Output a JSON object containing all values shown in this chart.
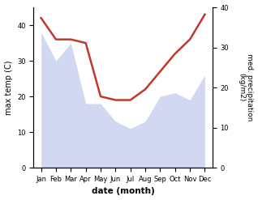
{
  "months": [
    "Jan",
    "Feb",
    "Mar",
    "Apr",
    "May",
    "Jun",
    "Jul",
    "Aug",
    "Sep",
    "Oct",
    "Nov",
    "Dec"
  ],
  "temperature": [
    42,
    36,
    36,
    35,
    20,
    19,
    19,
    22,
    27,
    32,
    36,
    43
  ],
  "precipitation": [
    38,
    30,
    35,
    18,
    18,
    13,
    11,
    13,
    20,
    21,
    19,
    26
  ],
  "temp_color": "#c0392b",
  "precip_color": "#b0b8e8",
  "ylabel_left": "max temp (C)",
  "ylabel_right": "med. precipitation\n(kg/m2)",
  "xlabel": "date (month)",
  "ylim_left": [
    0,
    45
  ],
  "ylim_right": [
    0,
    40
  ],
  "yticks_left": [
    0,
    10,
    20,
    30,
    40
  ],
  "yticks_right": [
    0,
    10,
    20,
    30,
    40
  ],
  "background_color": "#ffffff"
}
